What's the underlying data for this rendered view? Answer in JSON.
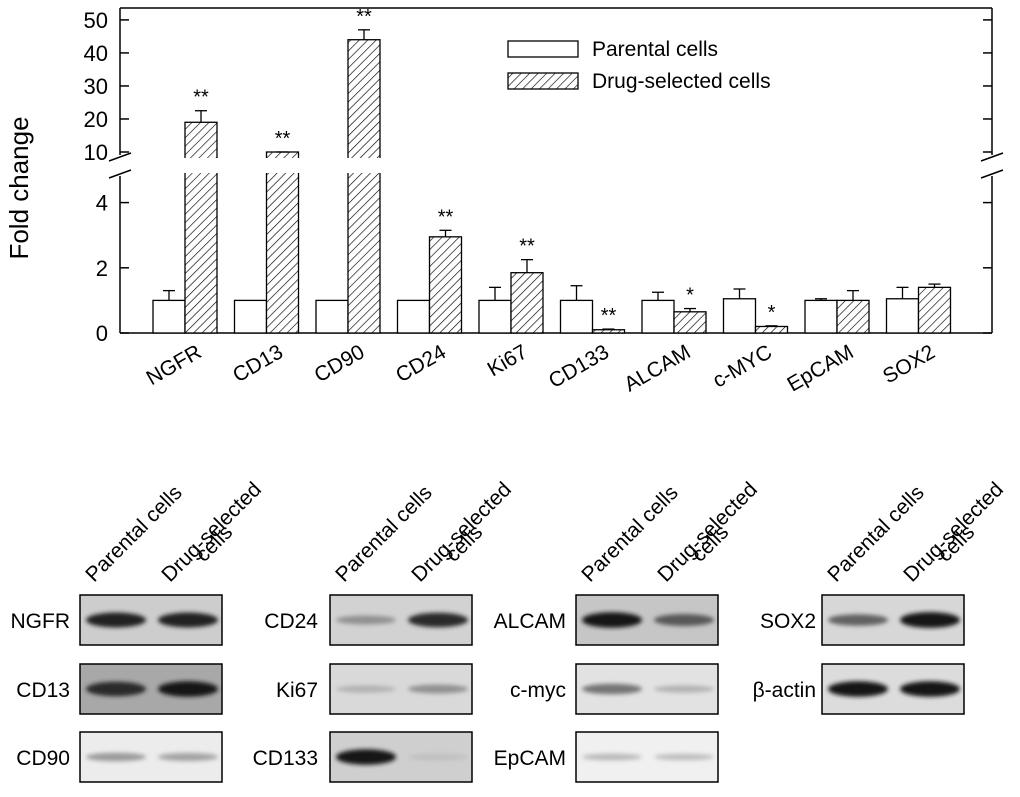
{
  "chart_data": {
    "type": "bar",
    "ylabel": "Fold change",
    "y_axis_break": true,
    "lower_ylim": [
      0,
      5
    ],
    "upper_ylim": [
      10,
      53
    ],
    "lower_ticks": [
      "0",
      "2",
      "4"
    ],
    "upper_ticks": [
      "10",
      "20",
      "30",
      "40",
      "50"
    ],
    "categories": [
      "NGFR",
      "CD13",
      "CD90",
      "CD24",
      "Ki67",
      "CD133",
      "ALCAM",
      "c-MYC",
      "EpCAM",
      "SOX2"
    ],
    "series": [
      {
        "name": "Parental cells",
        "pattern": "open",
        "values": [
          1.0,
          1.0,
          1.0,
          1.0,
          1.0,
          1.0,
          1.0,
          1.05,
          1.0,
          1.05
        ],
        "errors": [
          0.3,
          0.0,
          0.0,
          0.0,
          0.4,
          0.45,
          0.25,
          0.3,
          0.05,
          0.35
        ]
      },
      {
        "name": "Drug-selected cells",
        "pattern": "hatched",
        "values": [
          19,
          9,
          44,
          2.95,
          1.85,
          0.1,
          0.65,
          0.2,
          1.0,
          1.4
        ],
        "errors": [
          3.5,
          0.4,
          3,
          0.2,
          0.4,
          0.02,
          0.1,
          0.02,
          0.3,
          0.1
        ]
      }
    ],
    "significance": [
      "**",
      "**",
      "**",
      "**",
      "**",
      "**",
      "*",
      "*",
      "",
      ""
    ],
    "legend": {
      "position": "top-right",
      "entries": [
        "Parental cells",
        "Drug-selected cells"
      ]
    }
  },
  "blots": {
    "lane_labels": [
      "Parental cells",
      "Drug-selected",
      "cells"
    ],
    "panels": [
      {
        "rows": [
          {
            "label": "NGFR",
            "background": "#cdcdcd",
            "bands": [
              0.9,
              0.9
            ]
          },
          {
            "label": "CD13",
            "background": "#a8a8a8",
            "bands": [
              0.85,
              0.95
            ]
          },
          {
            "label": "CD90",
            "background": "#ececec",
            "bands": [
              0.25,
              0.2
            ]
          }
        ]
      },
      {
        "rows": [
          {
            "label": "CD24",
            "background": "#d2d2d2",
            "bands": [
              0.3,
              0.85
            ]
          },
          {
            "label": "Ki67",
            "background": "#d9d9d9",
            "bands": [
              0.12,
              0.3
            ]
          },
          {
            "label": "CD133",
            "background": "#cfcfcf",
            "bands": [
              0.95,
              0.05
            ]
          }
        ]
      },
      {
        "rows": [
          {
            "label": "ALCAM",
            "background": "#c6c6c6",
            "bands": [
              0.95,
              0.6
            ]
          },
          {
            "label": "c-myc",
            "background": "#e2e2e2",
            "bands": [
              0.45,
              0.12
            ]
          },
          {
            "label": "EpCAM",
            "background": "#f0f0f0",
            "bands": [
              0.08,
              0.06
            ]
          }
        ]
      },
      {
        "rows": [
          {
            "label": "SOX2",
            "background": "#d7d7d7",
            "bands": [
              0.55,
              0.98
            ]
          },
          {
            "label": "β-actin",
            "background": "#dcdcdc",
            "bands": [
              0.95,
              0.95
            ]
          }
        ]
      }
    ]
  }
}
